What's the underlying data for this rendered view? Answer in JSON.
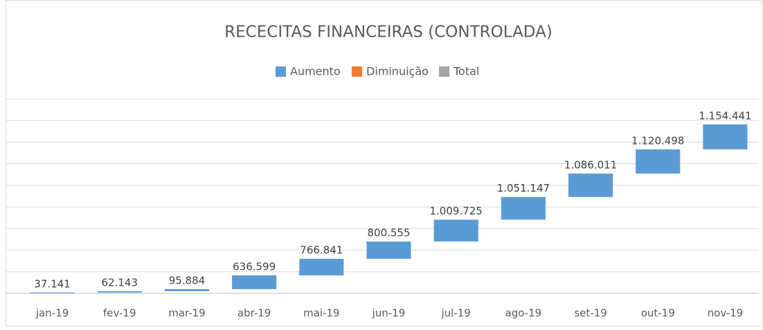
{
  "chart_data": {
    "type": "waterfall",
    "title": "RECECITAS FINANCEIRAS (CONTROLADA)",
    "legend": [
      {
        "name": "Aumento",
        "color": "#5b9bd5"
      },
      {
        "name": "Diminuição",
        "color": "#ed7d31"
      },
      {
        "name": "Total",
        "color": "#a5a5a5"
      }
    ],
    "categories": [
      "jan-19",
      "fev-19",
      "mar-19",
      "abr-19",
      "mai-19",
      "jun-19",
      "jul-19",
      "ago-19",
      "set-19",
      "out-19",
      "nov-19"
    ],
    "values": [
      37141,
      62143,
      95884,
      636599,
      766841,
      800555,
      1009725,
      1051147,
      1086011,
      1120498,
      1154441
    ],
    "value_labels": [
      "37.141",
      "62.143",
      "95.884",
      "636.599",
      "766.841",
      "800.555",
      "1.009.725",
      "1.051.147",
      "1.086.011",
      "1.120.498",
      "1.154.441"
    ],
    "color": "#5b9bd5",
    "ylim": [
      0,
      9000000
    ],
    "yticks": [
      0,
      1000000,
      2000000,
      3000000,
      4000000,
      5000000,
      6000000,
      7000000,
      8000000,
      9000000
    ],
    "grid": true
  }
}
